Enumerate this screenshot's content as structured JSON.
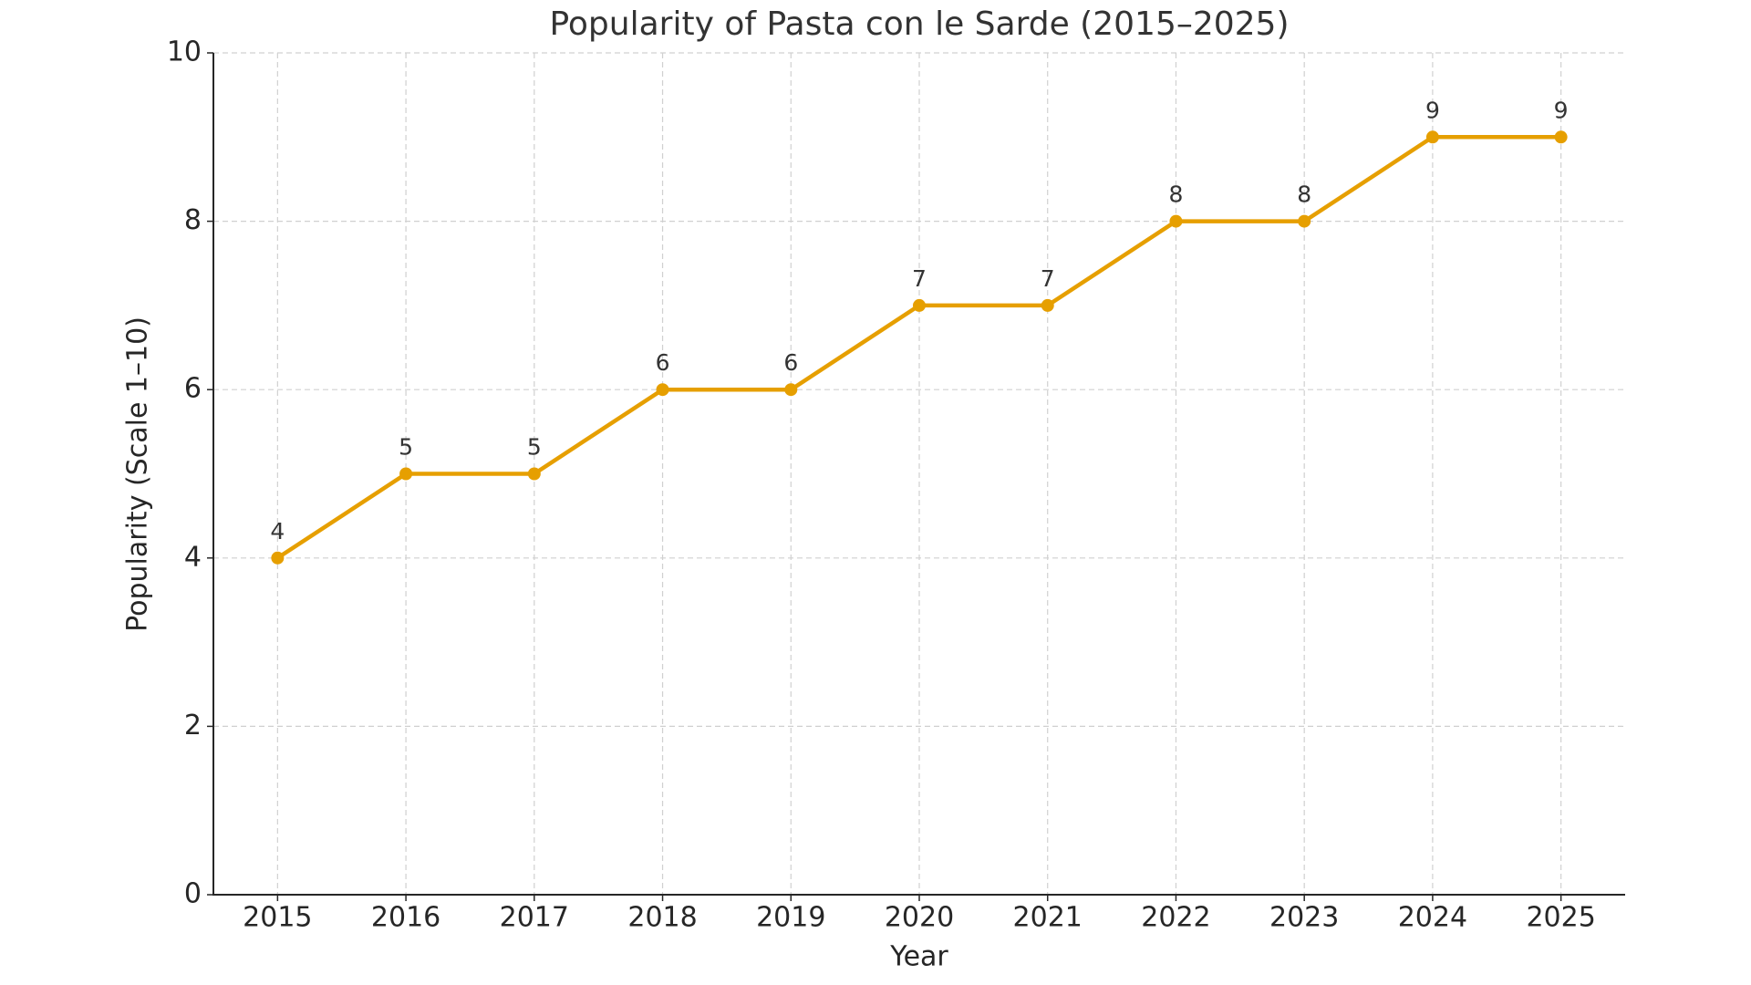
{
  "chart_data": {
    "type": "line",
    "title": "Popularity of Pasta con le Sarde (2015–2025)",
    "xlabel": "Year",
    "ylabel": "Popularity (Scale 1–10)",
    "x": [
      2015,
      2016,
      2017,
      2018,
      2019,
      2020,
      2021,
      2022,
      2023,
      2024,
      2025
    ],
    "values": [
      4,
      5,
      5,
      6,
      6,
      7,
      7,
      8,
      8,
      9,
      9
    ],
    "color": "#e69f00",
    "xlim": [
      2014.5,
      2025.5
    ],
    "xticks": [
      2015,
      2016,
      2017,
      2018,
      2019,
      2020,
      2021,
      2022,
      2023,
      2024,
      2025
    ],
    "ylim": [
      0,
      10
    ],
    "yticks": [
      0,
      2,
      4,
      6,
      8,
      10
    ],
    "grid": true
  }
}
